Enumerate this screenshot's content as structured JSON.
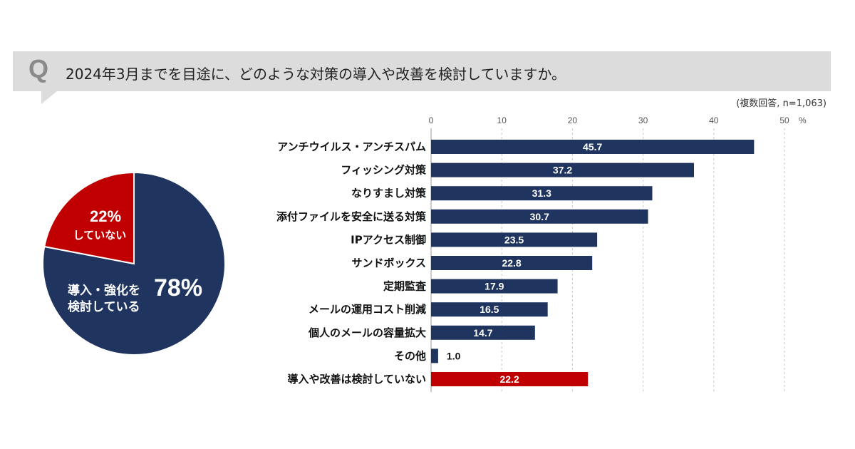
{
  "question": {
    "mark": "Q",
    "text": "2024年3月までを目途に、どのような対策の導入や改善を検討していますか。"
  },
  "note": "(複数回答, n=1,063)",
  "colors": {
    "navy": "#1f3560",
    "red": "#c00000",
    "grid": "#c8c8c8"
  },
  "chart_data": [
    {
      "type": "pie",
      "slices": [
        {
          "label_line1": "導入・強化を",
          "label_line2": "検討している",
          "value": 78,
          "value_text": "78%",
          "color": "#1f3560"
        },
        {
          "label_line1": "していない",
          "label_line2": "",
          "value": 22,
          "value_text": "22%",
          "color": "#c00000"
        }
      ]
    },
    {
      "type": "bar",
      "orientation": "horizontal",
      "xlim": [
        0,
        50
      ],
      "xticks": [
        0,
        10,
        20,
        30,
        40,
        50
      ],
      "unit": "%",
      "grid": true,
      "categories": [
        "アンチウイルス・アンチスパム",
        "フィッシング対策",
        "なりすまし対策",
        "添付ファイルを安全に送る対策",
        "IPアクセス制御",
        "サンドボックス",
        "定期監査",
        "メールの運用コスト削減",
        "個人のメールの容量拡大",
        "その他",
        "導入や改善は検討していない"
      ],
      "values": [
        45.7,
        37.2,
        31.3,
        30.7,
        23.5,
        22.8,
        17.9,
        16.5,
        14.7,
        1.0,
        22.2
      ],
      "value_labels": [
        "45.7",
        "37.2",
        "31.3",
        "30.7",
        "23.5",
        "22.8",
        "17.9",
        "16.5",
        "14.7",
        "1.0",
        "22.2"
      ],
      "highlight_last": true
    }
  ]
}
